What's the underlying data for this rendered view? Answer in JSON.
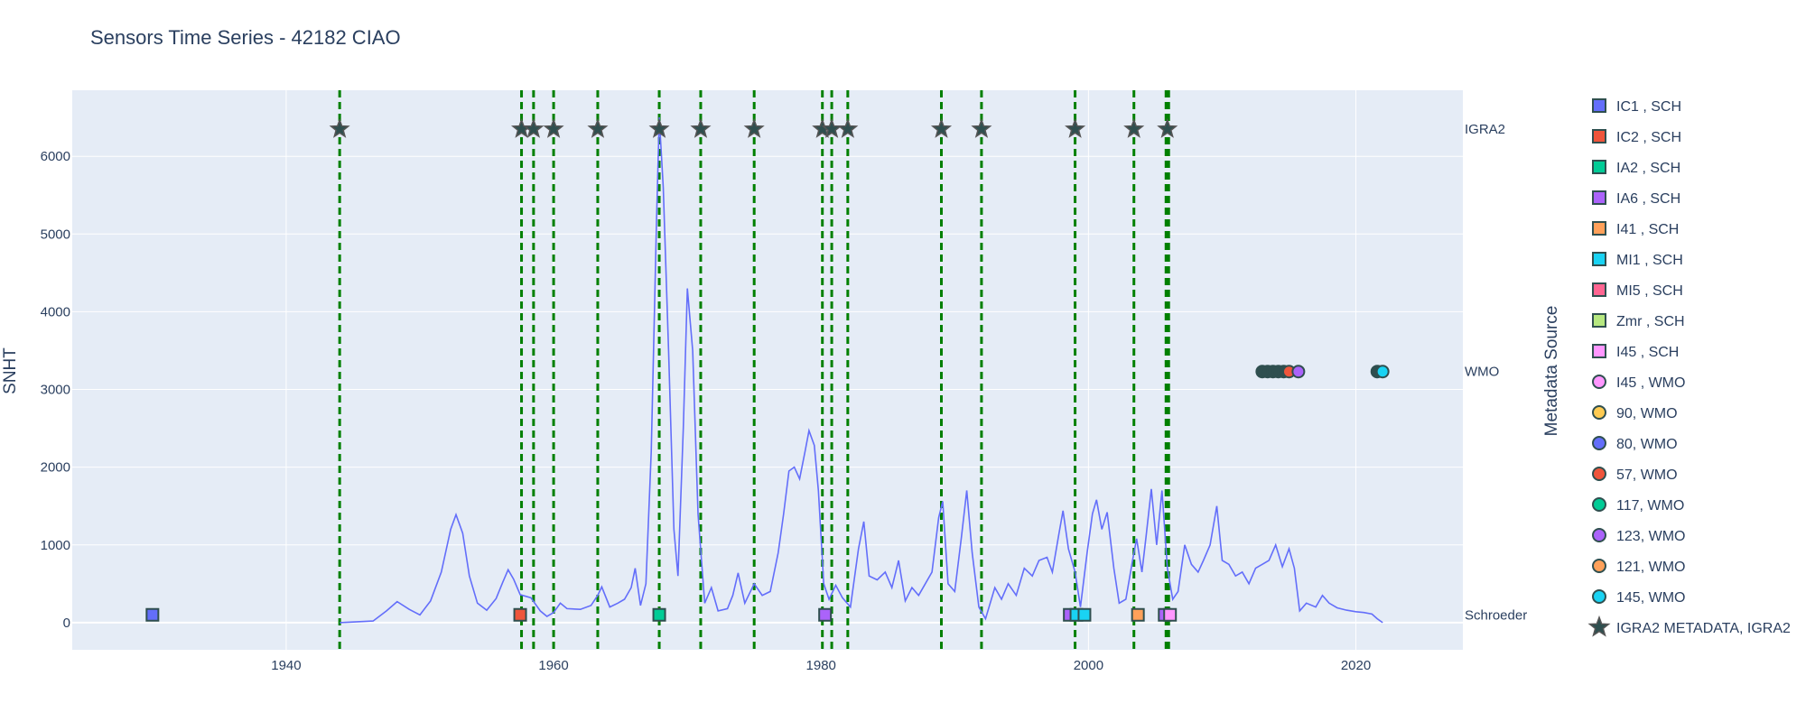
{
  "chart_data": {
    "type": "line",
    "title": "Sensors Time Series - 42182 CIAO",
    "ylabel": "SNHT",
    "xlabel": "",
    "legend_title": "Metadata Source",
    "legend_position": "right",
    "grid": true,
    "xlim": [
      1924,
      2028
    ],
    "ylim": [
      -350,
      6850
    ],
    "x_ticks": [
      1940,
      1960,
      1980,
      2000,
      2020
    ],
    "y_ticks": [
      0,
      1000,
      2000,
      3000,
      4000,
      5000,
      6000
    ],
    "colors": {
      "plot_bg": "#e5ecf6",
      "grid": "#ffffff",
      "line": "#636efa",
      "vline": "#008000",
      "star": "#2f4f4f"
    },
    "row_labels": [
      {
        "label": "IGRA2",
        "y": 6350
      },
      {
        "label": "WMO",
        "y": 3230
      },
      {
        "label": "Schroeder",
        "y": 100
      }
    ],
    "snht_series": {
      "name": "SNHT",
      "points": [
        [
          1944.0,
          0
        ],
        [
          1946.5,
          20
        ],
        [
          1947.5,
          150
        ],
        [
          1948.3,
          270
        ],
        [
          1949.2,
          170
        ],
        [
          1950.0,
          100
        ],
        [
          1950.8,
          280
        ],
        [
          1951.6,
          650
        ],
        [
          1952.3,
          1200
        ],
        [
          1952.7,
          1390
        ],
        [
          1953.2,
          1150
        ],
        [
          1953.7,
          600
        ],
        [
          1954.3,
          250
        ],
        [
          1955.0,
          160
        ],
        [
          1955.7,
          310
        ],
        [
          1956.2,
          520
        ],
        [
          1956.6,
          680
        ],
        [
          1957.0,
          560
        ],
        [
          1957.5,
          360
        ],
        [
          1958.3,
          320
        ],
        [
          1959.0,
          150
        ],
        [
          1959.5,
          80
        ],
        [
          1960.0,
          130
        ],
        [
          1960.5,
          250
        ],
        [
          1961.0,
          180
        ],
        [
          1962.0,
          170
        ],
        [
          1962.8,
          220
        ],
        [
          1963.3,
          350
        ],
        [
          1963.6,
          460
        ],
        [
          1964.2,
          200
        ],
        [
          1964.8,
          250
        ],
        [
          1965.3,
          300
        ],
        [
          1965.8,
          450
        ],
        [
          1966.1,
          700
        ],
        [
          1966.5,
          220
        ],
        [
          1966.9,
          500
        ],
        [
          1967.3,
          2200
        ],
        [
          1967.7,
          5200
        ],
        [
          1967.9,
          6500
        ],
        [
          1968.2,
          5600
        ],
        [
          1968.6,
          3500
        ],
        [
          1969.0,
          1200
        ],
        [
          1969.3,
          600
        ],
        [
          1969.7,
          2500
        ],
        [
          1970.0,
          4300
        ],
        [
          1970.4,
          3500
        ],
        [
          1970.8,
          1400
        ],
        [
          1971.3,
          250
        ],
        [
          1971.8,
          450
        ],
        [
          1972.3,
          150
        ],
        [
          1973.0,
          180
        ],
        [
          1973.4,
          350
        ],
        [
          1973.8,
          640
        ],
        [
          1974.3,
          250
        ],
        [
          1975.0,
          500
        ],
        [
          1975.6,
          350
        ],
        [
          1976.2,
          400
        ],
        [
          1976.8,
          900
        ],
        [
          1977.2,
          1400
        ],
        [
          1977.6,
          1950
        ],
        [
          1978.0,
          2000
        ],
        [
          1978.4,
          1850
        ],
        [
          1978.8,
          2200
        ],
        [
          1979.1,
          2470
        ],
        [
          1979.5,
          2280
        ],
        [
          1979.8,
          1700
        ],
        [
          1980.2,
          500
        ],
        [
          1980.6,
          300
        ],
        [
          1981.1,
          480
        ],
        [
          1981.6,
          320
        ],
        [
          1982.2,
          200
        ],
        [
          1982.8,
          950
        ],
        [
          1983.2,
          1300
        ],
        [
          1983.6,
          600
        ],
        [
          1984.2,
          550
        ],
        [
          1984.8,
          650
        ],
        [
          1985.3,
          450
        ],
        [
          1985.8,
          800
        ],
        [
          1986.3,
          280
        ],
        [
          1986.8,
          450
        ],
        [
          1987.3,
          350
        ],
        [
          1987.8,
          500
        ],
        [
          1988.3,
          650
        ],
        [
          1988.8,
          1350
        ],
        [
          1989.1,
          1560
        ],
        [
          1989.5,
          500
        ],
        [
          1990.0,
          400
        ],
        [
          1990.5,
          1100
        ],
        [
          1990.9,
          1700
        ],
        [
          1991.3,
          900
        ],
        [
          1991.8,
          200
        ],
        [
          1992.3,
          50
        ],
        [
          1993.0,
          450
        ],
        [
          1993.5,
          300
        ],
        [
          1994.0,
          500
        ],
        [
          1994.6,
          350
        ],
        [
          1995.2,
          700
        ],
        [
          1995.8,
          600
        ],
        [
          1996.3,
          800
        ],
        [
          1996.9,
          840
        ],
        [
          1997.3,
          650
        ],
        [
          1997.8,
          1150
        ],
        [
          1998.1,
          1440
        ],
        [
          1998.5,
          950
        ],
        [
          1999.0,
          650
        ],
        [
          1999.4,
          200
        ],
        [
          1999.9,
          900
        ],
        [
          2000.3,
          1400
        ],
        [
          2000.6,
          1580
        ],
        [
          2001.0,
          1200
        ],
        [
          2001.4,
          1420
        ],
        [
          2001.9,
          700
        ],
        [
          2002.3,
          250
        ],
        [
          2002.8,
          300
        ],
        [
          2003.3,
          800
        ],
        [
          2003.6,
          1080
        ],
        [
          2004.0,
          650
        ],
        [
          2004.3,
          1100
        ],
        [
          2004.7,
          1720
        ],
        [
          2005.1,
          1000
        ],
        [
          2005.5,
          1700
        ],
        [
          2005.9,
          700
        ],
        [
          2006.3,
          300
        ],
        [
          2006.7,
          400
        ],
        [
          2007.2,
          1000
        ],
        [
          2007.7,
          750
        ],
        [
          2008.2,
          650
        ],
        [
          2008.6,
          800
        ],
        [
          2009.1,
          1000
        ],
        [
          2009.6,
          1500
        ],
        [
          2010.0,
          800
        ],
        [
          2010.5,
          750
        ],
        [
          2011.0,
          600
        ],
        [
          2011.5,
          650
        ],
        [
          2012.0,
          500
        ],
        [
          2012.5,
          700
        ],
        [
          2013.0,
          750
        ],
        [
          2013.5,
          800
        ],
        [
          2014.0,
          1000
        ],
        [
          2014.5,
          720
        ],
        [
          2015.0,
          950
        ],
        [
          2015.4,
          700
        ],
        [
          2015.8,
          150
        ],
        [
          2016.3,
          250
        ],
        [
          2017.0,
          200
        ],
        [
          2017.5,
          350
        ],
        [
          2018.0,
          250
        ],
        [
          2018.6,
          190
        ],
        [
          2019.3,
          160
        ],
        [
          2020.0,
          140
        ],
        [
          2020.6,
          130
        ],
        [
          2021.2,
          110
        ],
        [
          2021.6,
          50
        ],
        [
          2022.0,
          0
        ]
      ]
    },
    "vertical_lines_x": [
      1944.0,
      1957.6,
      1958.5,
      1960.0,
      1963.3,
      1967.9,
      1971.0,
      1975.0,
      1980.1,
      1980.8,
      1982.0,
      1989.0,
      1992.0,
      1999.0,
      2003.4,
      2005.8,
      2005.9,
      2006.0
    ],
    "igra2_points_x": [
      1944.0,
      1957.6,
      1958.5,
      1960.0,
      1963.3,
      1967.9,
      1971.0,
      1975.0,
      1980.1,
      1980.8,
      1982.0,
      1989.0,
      1992.0,
      1999.0,
      2003.4,
      2005.9
    ],
    "schroeder_points": [
      {
        "x": 1930.0,
        "color": "#636efa"
      },
      {
        "x": 1957.5,
        "color": "#ef553b"
      },
      {
        "x": 1967.9,
        "color": "#00cc96"
      },
      {
        "x": 1980.3,
        "color": "#ab63fa"
      },
      {
        "x": 1998.6,
        "color": "#ab63fa"
      },
      {
        "x": 1999.1,
        "color": "#19d3f3"
      },
      {
        "x": 1999.7,
        "color": "#19d3f3"
      },
      {
        "x": 2003.7,
        "color": "#ffa15a"
      },
      {
        "x": 2005.7,
        "color": "#ab63fa"
      },
      {
        "x": 2006.1,
        "color": "#ff97ff"
      }
    ],
    "wmo_points": [
      {
        "x": 2013.0,
        "color": "#2f4f4f"
      },
      {
        "x": 2013.4,
        "color": "#2f4f4f"
      },
      {
        "x": 2013.8,
        "color": "#2f4f4f"
      },
      {
        "x": 2014.2,
        "color": "#2f4f4f"
      },
      {
        "x": 2014.6,
        "color": "#2f4f4f"
      },
      {
        "x": 2015.0,
        "color": "#ef553b"
      },
      {
        "x": 2015.7,
        "color": "#ab63fa"
      },
      {
        "x": 2021.6,
        "color": "#2f4f4f"
      },
      {
        "x": 2022.0,
        "color": "#19d3f3"
      }
    ],
    "legend": [
      {
        "label": "IC1 , SCH",
        "symbol": "square",
        "color": "#636efa"
      },
      {
        "label": "IC2 , SCH",
        "symbol": "square",
        "color": "#ef553b"
      },
      {
        "label": "IA2 , SCH",
        "symbol": "square",
        "color": "#00cc96"
      },
      {
        "label": "IA6 , SCH",
        "symbol": "square",
        "color": "#ab63fa"
      },
      {
        "label": "I41 , SCH",
        "symbol": "square",
        "color": "#ffa15a"
      },
      {
        "label": "MI1 , SCH",
        "symbol": "square",
        "color": "#19d3f3"
      },
      {
        "label": "MI5 , SCH",
        "symbol": "square",
        "color": "#ff6692"
      },
      {
        "label": "Zmr , SCH",
        "symbol": "square",
        "color": "#b6e880"
      },
      {
        "label": "I45 , SCH",
        "symbol": "square",
        "color": "#ff97ff"
      },
      {
        "label": "I45 , WMO",
        "symbol": "circle",
        "color": "#ff97ff"
      },
      {
        "label": "90, WMO",
        "symbol": "circle",
        "color": "#fecb52"
      },
      {
        "label": "80, WMO",
        "symbol": "circle",
        "color": "#636efa"
      },
      {
        "label": "57, WMO",
        "symbol": "circle",
        "color": "#ef553b"
      },
      {
        "label": "117, WMO",
        "symbol": "circle",
        "color": "#00cc96"
      },
      {
        "label": "123, WMO",
        "symbol": "circle",
        "color": "#ab63fa"
      },
      {
        "label": "121, WMO",
        "symbol": "circle",
        "color": "#ffa15a"
      },
      {
        "label": "145, WMO",
        "symbol": "circle",
        "color": "#19d3f3"
      },
      {
        "label": "IGRA2 METADATA, IGRA2",
        "symbol": "star",
        "color": "#2f4f4f"
      }
    ]
  }
}
